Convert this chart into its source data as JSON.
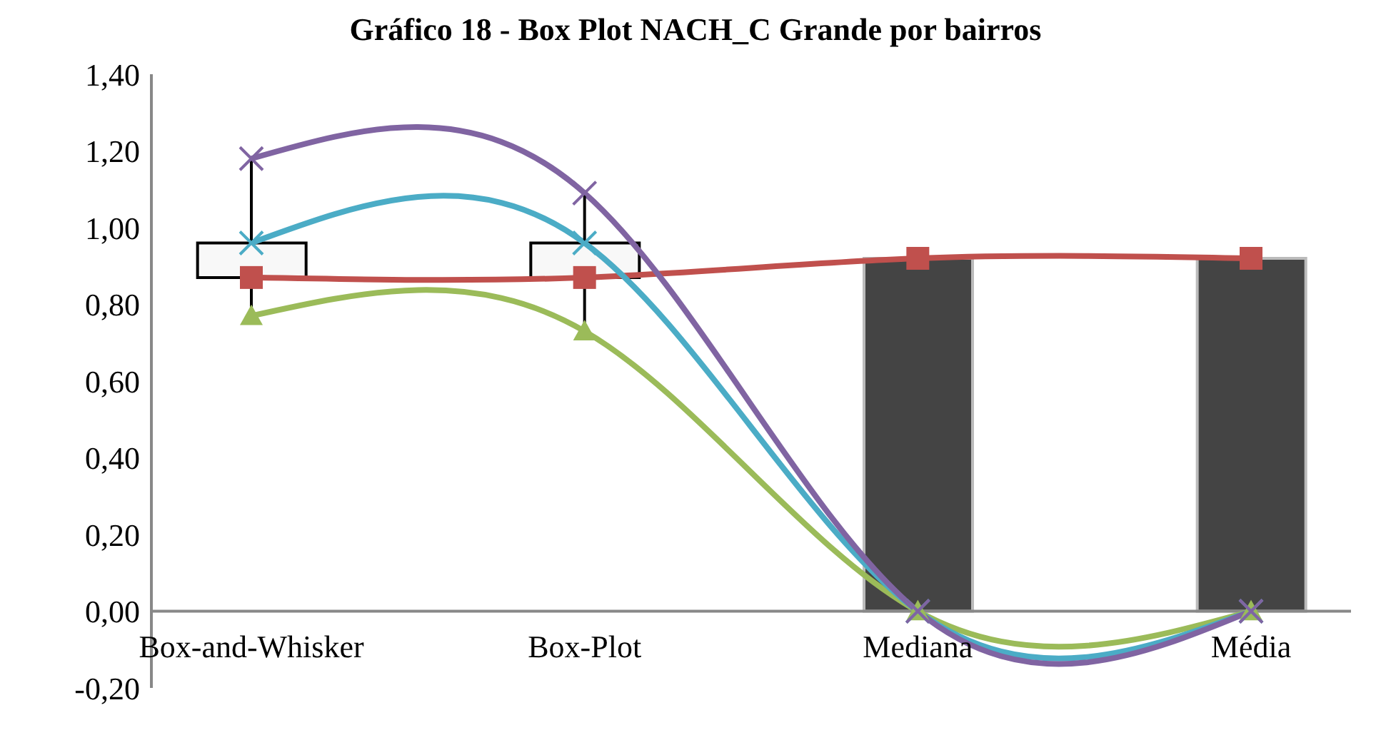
{
  "chart_data": {
    "type": "line",
    "title": "Gráfico 18 - Box Plot NACH_C Grande por bairros",
    "categories": [
      "Box-and-Whisker",
      "Box-Plot",
      "Mediana",
      "Média"
    ],
    "series": [
      {
        "type": "bar",
        "color": "#f8f8f8",
        "base": [
          0.87,
          0.87,
          null,
          null
        ],
        "values": [
          0.09,
          0.09,
          null,
          null
        ],
        "errors": [
          [
            0.77,
            1.18
          ],
          [
            0.73,
            1.09
          ],
          null,
          null
        ]
      },
      {
        "type": "bar",
        "color": "#444444",
        "values": [
          null,
          null,
          0.92,
          0.92
        ]
      },
      {
        "color": "#c0504d",
        "marker": "square",
        "values": [
          0.87,
          0.87,
          0.92,
          0.92
        ]
      },
      {
        "color": "#9bbb59",
        "marker": "triangle",
        "values": [
          0.77,
          0.73,
          0,
          0
        ]
      },
      {
        "color": "#4bacc6",
        "marker": "cross",
        "values": [
          0.96,
          0.96,
          0,
          0
        ]
      },
      {
        "color": "#8064a2",
        "marker": "cross",
        "values": [
          1.18,
          1.09,
          0,
          0
        ]
      }
    ],
    "ylim": [
      -0.2,
      1.4
    ],
    "yticks": [
      {
        "value": -0.2,
        "label": "-0,20"
      },
      {
        "value": 0,
        "label": "0,00"
      },
      {
        "value": 0.2,
        "label": "0,20"
      },
      {
        "value": 0.4,
        "label": "0,40"
      },
      {
        "value": 0.6,
        "label": "0,60"
      },
      {
        "value": 0.8,
        "label": "0,80"
      },
      {
        "value": 1,
        "label": "1,00"
      },
      {
        "value": 1.2,
        "label": "1,20"
      },
      {
        "value": 1.4,
        "label": "1,40"
      }
    ],
    "grid": false,
    "legend": false
  }
}
